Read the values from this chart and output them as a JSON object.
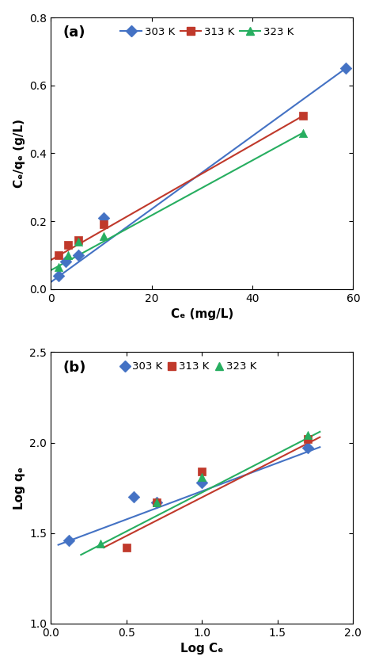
{
  "plot_a": {
    "title": "(a)",
    "xlabel": "Cₑ (mg/L)",
    "ylabel": "Cₑ/qₑ (g/L)",
    "xlim": [
      0,
      60
    ],
    "ylim": [
      0,
      0.8
    ],
    "xticks": [
      0,
      20,
      40,
      60
    ],
    "yticks": [
      0.0,
      0.2,
      0.4,
      0.6,
      0.8
    ],
    "series": [
      {
        "label": "303 K",
        "color": "#4472C4",
        "marker": "D",
        "markersize": 7,
        "x_data": [
          1.5,
          3.0,
          5.5,
          10.5,
          58.5
        ],
        "y_data": [
          0.04,
          0.08,
          0.1,
          0.21,
          0.65
        ],
        "line_x": [
          0,
          58.5
        ],
        "line_y": [
          0.02,
          0.65
        ]
      },
      {
        "label": "313 K",
        "color": "#C0392B",
        "marker": "s",
        "markersize": 7,
        "x_data": [
          1.5,
          3.5,
          5.5,
          10.5,
          50.0
        ],
        "y_data": [
          0.1,
          0.13,
          0.145,
          0.19,
          0.51
        ],
        "line_x": [
          0,
          50.0
        ],
        "line_y": [
          0.085,
          0.51
        ]
      },
      {
        "label": "323 K",
        "color": "#27AE60",
        "marker": "^",
        "markersize": 7,
        "x_data": [
          1.5,
          3.5,
          5.5,
          10.5,
          50.0
        ],
        "y_data": [
          0.065,
          0.1,
          0.14,
          0.155,
          0.46
        ],
        "line_x": [
          0,
          50.0
        ],
        "line_y": [
          0.055,
          0.46
        ]
      }
    ]
  },
  "plot_b": {
    "title": "(b)",
    "xlabel": "Log Cₑ",
    "ylabel": "Log qₑ",
    "xlim": [
      0,
      2
    ],
    "ylim": [
      1.0,
      2.5
    ],
    "xticks": [
      0,
      0.5,
      1.0,
      1.5,
      2.0
    ],
    "yticks": [
      1.0,
      1.5,
      2.0,
      2.5
    ],
    "series": [
      {
        "label": "303 K",
        "color": "#4472C4",
        "marker": "D",
        "markersize": 7,
        "x_data": [
          0.12,
          0.55,
          0.7,
          1.0,
          1.7
        ],
        "y_data": [
          1.46,
          1.7,
          1.67,
          1.78,
          1.97
        ],
        "line_x": [
          0.05,
          1.78
        ],
        "line_y": [
          1.435,
          1.975
        ]
      },
      {
        "label": "313 K",
        "color": "#C0392B",
        "marker": "s",
        "markersize": 7,
        "x_data": [
          0.5,
          0.7,
          1.0,
          1.7
        ],
        "y_data": [
          1.42,
          1.67,
          1.84,
          2.02
        ],
        "line_x": [
          0.35,
          1.78
        ],
        "line_y": [
          1.42,
          2.03
        ]
      },
      {
        "label": "323 K",
        "color": "#27AE60",
        "marker": "^",
        "markersize": 7,
        "x_data": [
          0.33,
          0.7,
          1.0,
          1.7
        ],
        "y_data": [
          1.44,
          1.67,
          1.81,
          2.04
        ],
        "line_x": [
          0.2,
          1.78
        ],
        "line_y": [
          1.38,
          2.06
        ]
      }
    ]
  },
  "fig_width": 4.74,
  "fig_height": 8.43,
  "dpi": 100
}
